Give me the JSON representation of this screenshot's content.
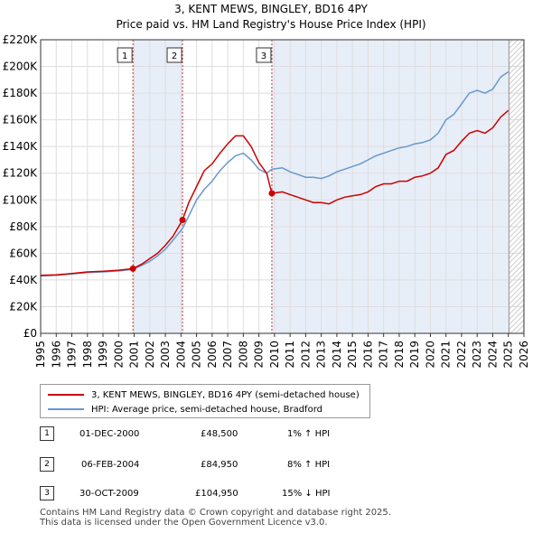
{
  "header": {
    "title": "3, KENT MEWS, BINGLEY, BD16 4PY",
    "subtitle": "Price paid vs. HM Land Registry's House Price Index (HPI)"
  },
  "colors": {
    "price": "#cc0000",
    "hpi": "#6699cc",
    "shade": "#e8eef8",
    "grid": "#dddddd",
    "future": "#cccccc"
  },
  "legend": {
    "price_label": "3, KENT MEWS, BINGLEY, BD16 4PY (semi-detached house)",
    "hpi_label": "HPI: Average price, semi-detached house, Bradford"
  },
  "sales": [
    {
      "num": "1",
      "date": "01-DEC-2000",
      "price": "£48,500",
      "delta": "1% ↑ HPI"
    },
    {
      "num": "2",
      "date": "06-FEB-2004",
      "price": "£84,950",
      "delta": "8% ↑ HPI"
    },
    {
      "num": "3",
      "date": "30-OCT-2009",
      "price": "£104,950",
      "delta": "15% ↓ HPI"
    }
  ],
  "footer": {
    "line1": "Contains HM Land Registry data © Crown copyright and database right 2025.",
    "line2": "This data is licensed under the Open Government Licence v3.0."
  },
  "chart_data": {
    "type": "line",
    "xlim": [
      1995,
      2026
    ],
    "ylim": [
      0,
      220000
    ],
    "yticks": [
      0,
      20000,
      40000,
      60000,
      80000,
      100000,
      120000,
      140000,
      160000,
      180000,
      200000,
      220000
    ],
    "ytick_labels": [
      "£0",
      "£20K",
      "£40K",
      "£60K",
      "£80K",
      "£100K",
      "£120K",
      "£140K",
      "£160K",
      "£180K",
      "£200K",
      "£220K"
    ],
    "xticks": [
      "1995",
      "1996",
      "1997",
      "1998",
      "1999",
      "2000",
      "2001",
      "2002",
      "2003",
      "2004",
      "2005",
      "2006",
      "2007",
      "2008",
      "2009",
      "2010",
      "2011",
      "2012",
      "2013",
      "2014",
      "2015",
      "2016",
      "2017",
      "2018",
      "2019",
      "2020",
      "2021",
      "2022",
      "2023",
      "2024",
      "2025",
      "2026"
    ],
    "sale_points": [
      {
        "label": "1",
        "x": 2000.92,
        "y": 48500
      },
      {
        "label": "2",
        "x": 2004.1,
        "y": 84950
      },
      {
        "label": "3",
        "x": 2009.83,
        "y": 104950
      }
    ],
    "future_from": 2025.05,
    "series": [
      {
        "name": "3, KENT MEWS, BINGLEY, BD16 4PY (semi-detached house)",
        "points": [
          [
            1995,
            43500
          ],
          [
            1996,
            43800
          ],
          [
            1997,
            44800
          ],
          [
            1998,
            46000
          ],
          [
            1999,
            46500
          ],
          [
            2000,
            47300
          ],
          [
            2000.92,
            48500
          ],
          [
            2001.5,
            52000
          ],
          [
            2002,
            56000
          ],
          [
            2002.5,
            60000
          ],
          [
            2003,
            66000
          ],
          [
            2003.5,
            73000
          ],
          [
            2004.1,
            84950
          ],
          [
            2004.5,
            98000
          ],
          [
            2005,
            110000
          ],
          [
            2005.5,
            122000
          ],
          [
            2006,
            127000
          ],
          [
            2006.5,
            135000
          ],
          [
            2007,
            142000
          ],
          [
            2007.5,
            148000
          ],
          [
            2008,
            148000
          ],
          [
            2008.5,
            140000
          ],
          [
            2009,
            128000
          ],
          [
            2009.5,
            120000
          ],
          [
            2009.83,
            104950
          ],
          [
            2010.5,
            106000
          ],
          [
            2011,
            104000
          ],
          [
            2011.5,
            102000
          ],
          [
            2012,
            100000
          ],
          [
            2012.5,
            98000
          ],
          [
            2013,
            98000
          ],
          [
            2013.5,
            97000
          ],
          [
            2014,
            100000
          ],
          [
            2014.5,
            102000
          ],
          [
            2015,
            103000
          ],
          [
            2015.5,
            104000
          ],
          [
            2016,
            106000
          ],
          [
            2016.5,
            110000
          ],
          [
            2017,
            112000
          ],
          [
            2017.5,
            112000
          ],
          [
            2018,
            114000
          ],
          [
            2018.5,
            114000
          ],
          [
            2019,
            117000
          ],
          [
            2019.5,
            118000
          ],
          [
            2020,
            120000
          ],
          [
            2020.5,
            124000
          ],
          [
            2021,
            134000
          ],
          [
            2021.5,
            137000
          ],
          [
            2022,
            144000
          ],
          [
            2022.5,
            150000
          ],
          [
            2023,
            152000
          ],
          [
            2023.5,
            150000
          ],
          [
            2024,
            154000
          ],
          [
            2024.5,
            162000
          ],
          [
            2025,
            167000
          ]
        ]
      },
      {
        "name": "HPI: Average price, semi-detached house, Bradford",
        "points": [
          [
            1995,
            43000
          ],
          [
            1996,
            43500
          ],
          [
            1997,
            44500
          ],
          [
            1998,
            45500
          ],
          [
            1999,
            46000
          ],
          [
            2000,
            46800
          ],
          [
            2000.92,
            48000
          ],
          [
            2001.5,
            51000
          ],
          [
            2002,
            54000
          ],
          [
            2002.5,
            58000
          ],
          [
            2003,
            63000
          ],
          [
            2003.5,
            70000
          ],
          [
            2004.1,
            78500
          ],
          [
            2004.5,
            88000
          ],
          [
            2005,
            100000
          ],
          [
            2005.5,
            108000
          ],
          [
            2006,
            114000
          ],
          [
            2006.5,
            122000
          ],
          [
            2007,
            128000
          ],
          [
            2007.5,
            133000
          ],
          [
            2008,
            135000
          ],
          [
            2008.5,
            130000
          ],
          [
            2009,
            123000
          ],
          [
            2009.5,
            120000
          ],
          [
            2009.83,
            123000
          ],
          [
            2010.5,
            124000
          ],
          [
            2011,
            121000
          ],
          [
            2011.5,
            119000
          ],
          [
            2012,
            117000
          ],
          [
            2012.5,
            117000
          ],
          [
            2013,
            116000
          ],
          [
            2013.5,
            118000
          ],
          [
            2014,
            121000
          ],
          [
            2014.5,
            123000
          ],
          [
            2015,
            125000
          ],
          [
            2015.5,
            127000
          ],
          [
            2016,
            130000
          ],
          [
            2016.5,
            133000
          ],
          [
            2017,
            135000
          ],
          [
            2017.5,
            137000
          ],
          [
            2018,
            139000
          ],
          [
            2018.5,
            140000
          ],
          [
            2019,
            142000
          ],
          [
            2019.5,
            143000
          ],
          [
            2020,
            145000
          ],
          [
            2020.5,
            150000
          ],
          [
            2021,
            160000
          ],
          [
            2021.5,
            164000
          ],
          [
            2022,
            172000
          ],
          [
            2022.5,
            180000
          ],
          [
            2023,
            182000
          ],
          [
            2023.5,
            180000
          ],
          [
            2024,
            183000
          ],
          [
            2024.5,
            192000
          ],
          [
            2025,
            196000
          ]
        ]
      }
    ]
  }
}
